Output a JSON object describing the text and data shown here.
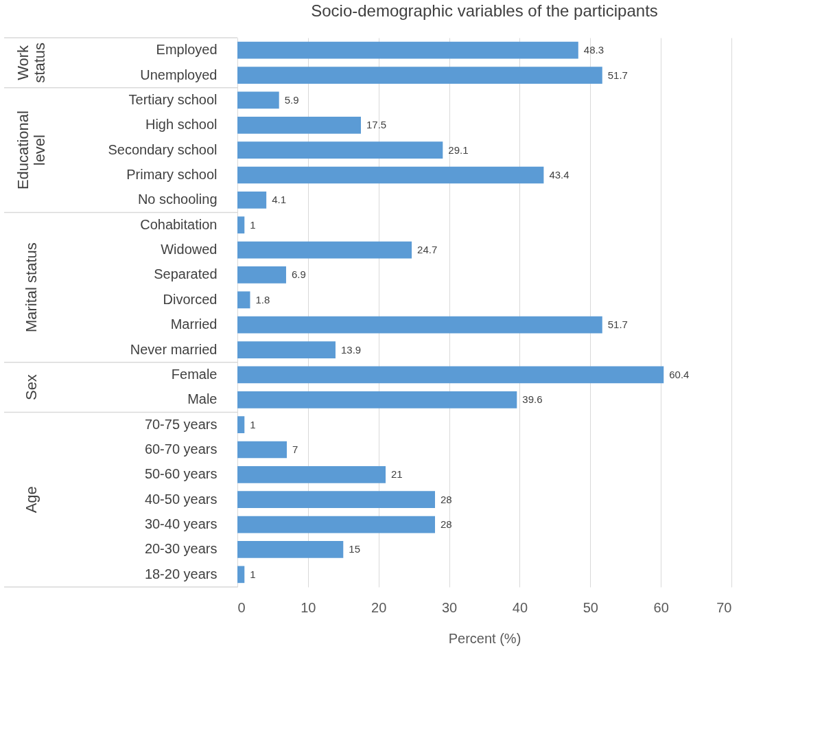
{
  "chart_data": {
    "type": "bar",
    "orientation": "horizontal",
    "title": "Socio-demographic variables of the participants",
    "xlabel": "Percent (%)",
    "categories": [
      "Employed",
      "Unemployed",
      "Tertiary school",
      "High school",
      "Secondary school",
      "Primary school",
      "No schooling",
      "Cohabitation",
      "Widowed",
      "Separated",
      "Divorced",
      "Married",
      "Never married",
      "Female",
      "Male",
      "70-75 years",
      "60-70 years",
      "50-60 years",
      "40-50 years",
      "30-40 years",
      "20-30 years",
      "18-20 years"
    ],
    "values": [
      48.3,
      51.7,
      5.9,
      17.5,
      29.1,
      43.4,
      4.1,
      1,
      24.7,
      6.9,
      1.8,
      51.7,
      13.9,
      60.4,
      39.6,
      1,
      7,
      21,
      28,
      28,
      15,
      1
    ],
    "color": "#5b9bd5",
    "xlim": [
      0,
      70
    ],
    "xticks": [
      0,
      10,
      20,
      30,
      40,
      50,
      60,
      70
    ],
    "grid": "x",
    "data_labels": true,
    "annotations": [
      "Work status",
      "Educational level",
      "Marital status",
      "Sex",
      "Age"
    ]
  }
}
